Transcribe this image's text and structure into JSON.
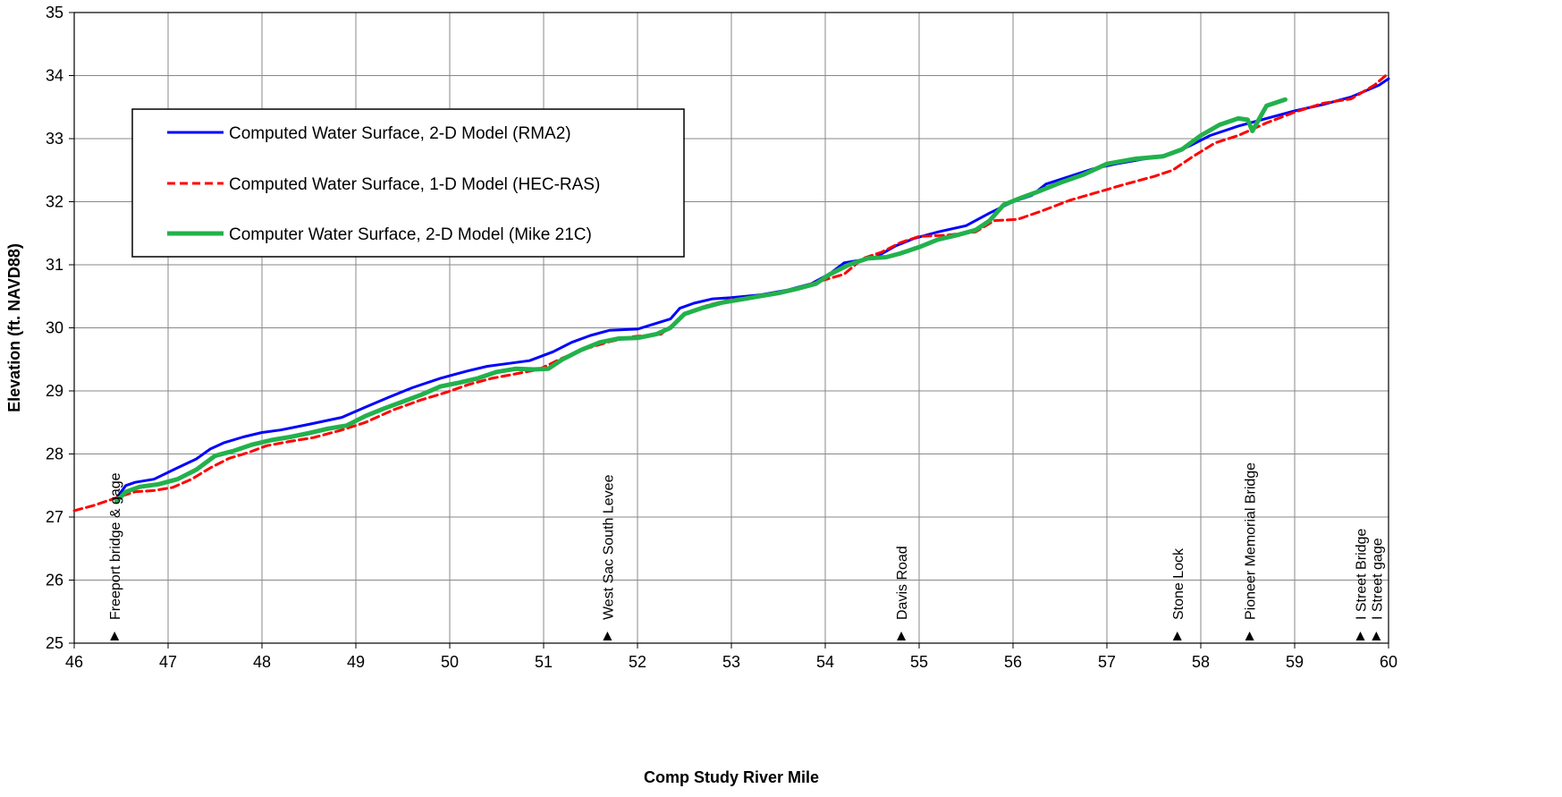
{
  "chart_data": {
    "type": "line",
    "xlabel": "Comp Study River Mile",
    "ylabel": "Elevation (ft. NAVD88)",
    "xlim": [
      46,
      60
    ],
    "ylim": [
      25,
      35
    ],
    "xticks": [
      46,
      47,
      48,
      49,
      50,
      51,
      52,
      53,
      54,
      55,
      56,
      57,
      58,
      59,
      60
    ],
    "yticks": [
      25,
      26,
      27,
      28,
      29,
      30,
      31,
      32,
      33,
      34,
      35
    ],
    "grid": true,
    "legend_position": "upper-left",
    "series": [
      {
        "name": "Computed Water Surface, 2-D Model (RMA2)",
        "color": "#0000ff",
        "style": "solid",
        "x": [
          46.45,
          46.55,
          46.65,
          46.85,
          47.1,
          47.3,
          47.45,
          47.6,
          47.8,
          48.0,
          48.2,
          48.5,
          48.85,
          49.1,
          49.35,
          49.6,
          49.9,
          50.2,
          50.4,
          50.6,
          50.85,
          51.1,
          51.3,
          51.5,
          51.7,
          52.0,
          52.35,
          52.45,
          52.6,
          52.8,
          53.0,
          53.3,
          53.6,
          53.85,
          54.05,
          54.2,
          54.4,
          54.55,
          54.75,
          54.95,
          55.2,
          55.5,
          55.75,
          56.0,
          56.2,
          56.35,
          56.6,
          56.85,
          57.1,
          57.4,
          57.7,
          57.9,
          58.1,
          58.4,
          58.7,
          59.0,
          59.3,
          59.6,
          59.9,
          60.0
        ],
        "y": [
          27.3,
          27.5,
          27.55,
          27.6,
          27.78,
          27.92,
          28.08,
          28.18,
          28.27,
          28.34,
          28.38,
          28.47,
          28.58,
          28.74,
          28.9,
          29.05,
          29.2,
          29.32,
          29.39,
          29.43,
          29.48,
          29.62,
          29.77,
          29.88,
          29.96,
          29.98,
          30.14,
          30.31,
          30.39,
          30.46,
          30.48,
          30.52,
          30.6,
          30.7,
          30.86,
          31.03,
          31.08,
          31.13,
          31.3,
          31.42,
          31.52,
          31.62,
          31.82,
          32.0,
          32.1,
          32.28,
          32.4,
          32.52,
          32.6,
          32.68,
          32.76,
          32.9,
          33.05,
          33.2,
          33.32,
          33.44,
          33.54,
          33.66,
          33.85,
          33.95
        ]
      },
      {
        "name": "Computed Water Surface, 1-D Model (HEC-RAS)",
        "color": "#ff0000",
        "style": "dashed",
        "x": [
          46.0,
          46.2,
          46.4,
          46.5,
          46.65,
          46.85,
          47.05,
          47.25,
          47.45,
          47.65,
          47.85,
          48.05,
          48.3,
          48.55,
          48.85,
          49.1,
          49.4,
          49.7,
          49.95,
          50.2,
          50.45,
          50.7,
          50.95,
          51.2,
          51.45,
          51.7,
          51.95,
          52.25,
          52.5,
          52.75,
          53.0,
          53.3,
          53.6,
          53.9,
          54.2,
          54.4,
          54.6,
          54.8,
          55.0,
          55.3,
          55.6,
          55.8,
          56.05,
          56.3,
          56.6,
          56.9,
          57.2,
          57.5,
          57.7,
          57.9,
          58.15,
          58.4,
          58.7,
          59.0,
          59.3,
          59.6,
          59.85,
          60.0
        ],
        "y": [
          27.1,
          27.18,
          27.28,
          27.33,
          27.4,
          27.42,
          27.47,
          27.6,
          27.78,
          27.93,
          28.02,
          28.13,
          28.2,
          28.26,
          28.38,
          28.5,
          28.7,
          28.86,
          28.97,
          29.1,
          29.2,
          29.27,
          29.34,
          29.52,
          29.67,
          29.78,
          29.86,
          29.9,
          30.2,
          30.36,
          30.45,
          30.5,
          30.58,
          30.72,
          30.85,
          31.1,
          31.2,
          31.35,
          31.45,
          31.47,
          31.52,
          31.7,
          31.72,
          31.85,
          32.02,
          32.15,
          32.28,
          32.4,
          32.5,
          32.7,
          32.93,
          33.05,
          33.25,
          33.42,
          33.56,
          33.63,
          33.85,
          34.04
        ]
      },
      {
        "name": "Computer Water Surface, 2-D Model (Mike 21C)",
        "color": "#22b14c",
        "style": "solid",
        "x": [
          46.45,
          46.55,
          46.7,
          46.9,
          47.1,
          47.3,
          47.5,
          47.7,
          47.9,
          48.1,
          48.3,
          48.5,
          48.7,
          48.9,
          49.1,
          49.3,
          49.5,
          49.7,
          49.9,
          50.1,
          50.3,
          50.5,
          50.7,
          50.9,
          51.05,
          51.2,
          51.4,
          51.6,
          51.8,
          52.0,
          52.2,
          52.35,
          52.5,
          52.7,
          52.9,
          53.1,
          53.3,
          53.5,
          53.7,
          53.9,
          54.05,
          54.25,
          54.45,
          54.65,
          54.8,
          55.0,
          55.2,
          55.4,
          55.6,
          55.75,
          55.9,
          56.1,
          56.25,
          56.5,
          56.75,
          57.0,
          57.3,
          57.6,
          57.8,
          58.0,
          58.2,
          58.4,
          58.5,
          58.55,
          58.7,
          58.9
        ],
        "y": [
          27.25,
          27.4,
          27.48,
          27.52,
          27.6,
          27.75,
          27.97,
          28.05,
          28.15,
          28.22,
          28.27,
          28.33,
          28.4,
          28.45,
          28.6,
          28.72,
          28.83,
          28.94,
          29.07,
          29.13,
          29.2,
          29.3,
          29.35,
          29.34,
          29.35,
          29.5,
          29.65,
          29.77,
          29.83,
          29.84,
          29.9,
          30.0,
          30.22,
          30.32,
          30.4,
          30.45,
          30.5,
          30.55,
          30.62,
          30.7,
          30.85,
          31.0,
          31.1,
          31.12,
          31.18,
          31.28,
          31.4,
          31.47,
          31.55,
          31.7,
          31.95,
          32.07,
          32.15,
          32.3,
          32.43,
          32.6,
          32.68,
          32.72,
          32.83,
          33.05,
          33.22,
          33.32,
          33.3,
          33.12,
          33.52,
          33.62
        ]
      }
    ],
    "annotations": [
      {
        "x": 46.43,
        "text": "Freeport bridge & gage"
      },
      {
        "x": 51.68,
        "text": "West Sac South Levee"
      },
      {
        "x": 54.81,
        "text": "Davis Road"
      },
      {
        "x": 57.75,
        "text": "Stone Lock"
      },
      {
        "x": 58.52,
        "text": "Pioneer Memorial Bridge"
      },
      {
        "x": 59.7,
        "text": "I Street Bridge"
      },
      {
        "x": 59.87,
        "text": "I Street gage"
      }
    ]
  }
}
